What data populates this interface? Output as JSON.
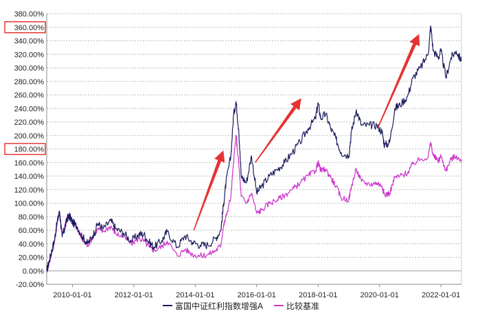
{
  "chart_data": {
    "type": "line",
    "title": "",
    "xlabel": "",
    "ylabel": "",
    "ylim": [
      -20,
      380
    ],
    "y_ticks": [
      "380.00%",
      "360.00%",
      "340.00%",
      "320.00%",
      "300.00%",
      "280.00%",
      "260.00%",
      "240.00%",
      "220.00%",
      "200.00%",
      "180.00%",
      "160.00%",
      "140.00%",
      "120.00%",
      "100.00%",
      "80.00%",
      "60.00%",
      "40.00%",
      "20.00%",
      "0.00%",
      "-20.00%"
    ],
    "x_ticks": [
      "2010-01-01",
      "2012-01-01",
      "2014-01-01",
      "2016-01-01",
      "2018-01-01",
      "2020-01-01",
      "2022-01-01"
    ],
    "highlighted_ticks": [
      "360.00%",
      "180.00%"
    ],
    "xlim": [
      "2009-03-01",
      "2022-09-01"
    ],
    "grid": true,
    "legend_position": "bottom-center",
    "series": [
      {
        "name": "富国中证红利指数增强A",
        "color": "#1b1b5e",
        "points": [
          [
            "2009-03-01",
            0
          ],
          [
            "2009-04-01",
            15
          ],
          [
            "2009-05-01",
            30
          ],
          [
            "2009-06-01",
            45
          ],
          [
            "2009-07-01",
            70
          ],
          [
            "2009-08-01",
            88
          ],
          [
            "2009-09-01",
            50
          ],
          [
            "2009-10-01",
            62
          ],
          [
            "2009-11-01",
            78
          ],
          [
            "2009-12-01",
            80
          ],
          [
            "2010-01-01",
            72
          ],
          [
            "2010-03-01",
            65
          ],
          [
            "2010-05-01",
            50
          ],
          [
            "2010-07-01",
            40
          ],
          [
            "2010-09-01",
            52
          ],
          [
            "2010-11-01",
            70
          ],
          [
            "2011-01-01",
            62
          ],
          [
            "2011-04-01",
            74
          ],
          [
            "2011-06-01",
            62
          ],
          [
            "2011-09-01",
            56
          ],
          [
            "2011-12-01",
            44
          ],
          [
            "2012-03-01",
            54
          ],
          [
            "2012-05-01",
            54
          ],
          [
            "2012-07-01",
            42
          ],
          [
            "2012-09-01",
            35
          ],
          [
            "2012-12-01",
            45
          ],
          [
            "2013-02-01",
            58
          ],
          [
            "2013-06-01",
            35
          ],
          [
            "2013-09-01",
            52
          ],
          [
            "2013-12-01",
            42
          ],
          [
            "2014-03-01",
            38
          ],
          [
            "2014-06-01",
            38
          ],
          [
            "2014-09-01",
            48
          ],
          [
            "2014-11-01",
            60
          ],
          [
            "2014-12-01",
            95
          ],
          [
            "2015-01-01",
            130
          ],
          [
            "2015-03-01",
            170
          ],
          [
            "2015-04-01",
            230
          ],
          [
            "2015-05-01",
            250
          ],
          [
            "2015-06-01",
            210
          ],
          [
            "2015-07-01",
            140
          ],
          [
            "2015-09-01",
            130
          ],
          [
            "2015-11-01",
            170
          ],
          [
            "2016-01-01",
            115
          ],
          [
            "2016-03-01",
            125
          ],
          [
            "2016-06-01",
            140
          ],
          [
            "2016-09-01",
            150
          ],
          [
            "2016-12-01",
            160
          ],
          [
            "2017-03-01",
            175
          ],
          [
            "2017-06-01",
            190
          ],
          [
            "2017-09-01",
            210
          ],
          [
            "2017-12-01",
            225
          ],
          [
            "2018-01-01",
            248
          ],
          [
            "2018-02-01",
            225
          ],
          [
            "2018-04-01",
            232
          ],
          [
            "2018-06-01",
            210
          ],
          [
            "2018-08-01",
            195
          ],
          [
            "2018-10-01",
            175
          ],
          [
            "2019-01-01",
            170
          ],
          [
            "2019-02-01",
            205
          ],
          [
            "2019-04-01",
            238
          ],
          [
            "2019-06-01",
            215
          ],
          [
            "2019-09-01",
            215
          ],
          [
            "2019-12-01",
            215
          ],
          [
            "2020-02-01",
            205
          ],
          [
            "2020-03-01",
            185
          ],
          [
            "2020-05-01",
            190
          ],
          [
            "2020-07-01",
            240
          ],
          [
            "2020-09-01",
            245
          ],
          [
            "2020-12-01",
            258
          ],
          [
            "2021-02-01",
            285
          ],
          [
            "2021-05-01",
            300
          ],
          [
            "2021-08-01",
            320
          ],
          [
            "2021-09-01",
            362
          ],
          [
            "2021-10-01",
            325
          ],
          [
            "2021-12-01",
            315
          ],
          [
            "2022-01-01",
            325
          ],
          [
            "2022-03-01",
            285
          ],
          [
            "2022-05-01",
            315
          ],
          [
            "2022-07-01",
            325
          ],
          [
            "2022-09-01",
            310
          ]
        ]
      },
      {
        "name": "比较基准",
        "color": "#cc33cc",
        "points": [
          [
            "2009-03-01",
            0
          ],
          [
            "2009-04-01",
            12
          ],
          [
            "2009-05-01",
            28
          ],
          [
            "2009-06-01",
            42
          ],
          [
            "2009-07-01",
            70
          ],
          [
            "2009-08-01",
            88
          ],
          [
            "2009-09-01",
            55
          ],
          [
            "2009-10-01",
            65
          ],
          [
            "2009-11-01",
            80
          ],
          [
            "2009-12-01",
            82
          ],
          [
            "2010-01-01",
            72
          ],
          [
            "2010-03-01",
            62
          ],
          [
            "2010-05-01",
            45
          ],
          [
            "2010-07-01",
            38
          ],
          [
            "2010-09-01",
            50
          ],
          [
            "2010-11-01",
            62
          ],
          [
            "2011-01-01",
            58
          ],
          [
            "2011-04-01",
            66
          ],
          [
            "2011-06-01",
            55
          ],
          [
            "2011-09-01",
            50
          ],
          [
            "2011-12-01",
            40
          ],
          [
            "2012-03-01",
            48
          ],
          [
            "2012-05-01",
            44
          ],
          [
            "2012-07-01",
            35
          ],
          [
            "2012-09-01",
            30
          ],
          [
            "2012-12-01",
            36
          ],
          [
            "2013-02-01",
            44
          ],
          [
            "2013-06-01",
            22
          ],
          [
            "2013-09-01",
            32
          ],
          [
            "2013-12-01",
            24
          ],
          [
            "2014-03-01",
            22
          ],
          [
            "2014-06-01",
            24
          ],
          [
            "2014-09-01",
            30
          ],
          [
            "2014-11-01",
            38
          ],
          [
            "2014-12-01",
            65
          ],
          [
            "2015-01-01",
            80
          ],
          [
            "2015-03-01",
            110
          ],
          [
            "2015-04-01",
            160
          ],
          [
            "2015-05-01",
            200
          ],
          [
            "2015-06-01",
            160
          ],
          [
            "2015-07-01",
            110
          ],
          [
            "2015-09-01",
            100
          ],
          [
            "2015-11-01",
            115
          ],
          [
            "2016-01-01",
            85
          ],
          [
            "2016-03-01",
            90
          ],
          [
            "2016-06-01",
            100
          ],
          [
            "2016-09-01",
            105
          ],
          [
            "2016-12-01",
            112
          ],
          [
            "2017-03-01",
            120
          ],
          [
            "2017-06-01",
            130
          ],
          [
            "2017-09-01",
            140
          ],
          [
            "2017-12-01",
            148
          ],
          [
            "2018-01-01",
            160
          ],
          [
            "2018-02-01",
            148
          ],
          [
            "2018-04-01",
            150
          ],
          [
            "2018-06-01",
            138
          ],
          [
            "2018-08-01",
            125
          ],
          [
            "2018-10-01",
            108
          ],
          [
            "2019-01-01",
            105
          ],
          [
            "2019-02-01",
            125
          ],
          [
            "2019-04-01",
            150
          ],
          [
            "2019-06-01",
            132
          ],
          [
            "2019-09-01",
            128
          ],
          [
            "2019-12-01",
            130
          ],
          [
            "2020-02-01",
            125
          ],
          [
            "2020-03-01",
            112
          ],
          [
            "2020-05-01",
            115
          ],
          [
            "2020-07-01",
            138
          ],
          [
            "2020-09-01",
            140
          ],
          [
            "2020-12-01",
            145
          ],
          [
            "2021-02-01",
            158
          ],
          [
            "2021-05-01",
            165
          ],
          [
            "2021-08-01",
            168
          ],
          [
            "2021-09-01",
            190
          ],
          [
            "2021-10-01",
            170
          ],
          [
            "2021-12-01",
            162
          ],
          [
            "2022-01-01",
            170
          ],
          [
            "2022-03-01",
            148
          ],
          [
            "2022-05-01",
            165
          ],
          [
            "2022-07-01",
            170
          ],
          [
            "2022-09-01",
            160
          ]
        ]
      }
    ],
    "annotations": [
      {
        "type": "arrow",
        "color": "#e53333",
        "from": [
          "2013-12-15",
          60
        ],
        "to": [
          "2014-12-01",
          178
        ]
      },
      {
        "type": "arrow",
        "color": "#e53333",
        "from": [
          "2015-12-15",
          160
        ],
        "to": [
          "2017-06-15",
          255
        ]
      },
      {
        "type": "arrow",
        "color": "#e53333",
        "from": [
          "2019-12-15",
          212
        ],
        "to": [
          "2021-04-15",
          350
        ]
      }
    ]
  }
}
